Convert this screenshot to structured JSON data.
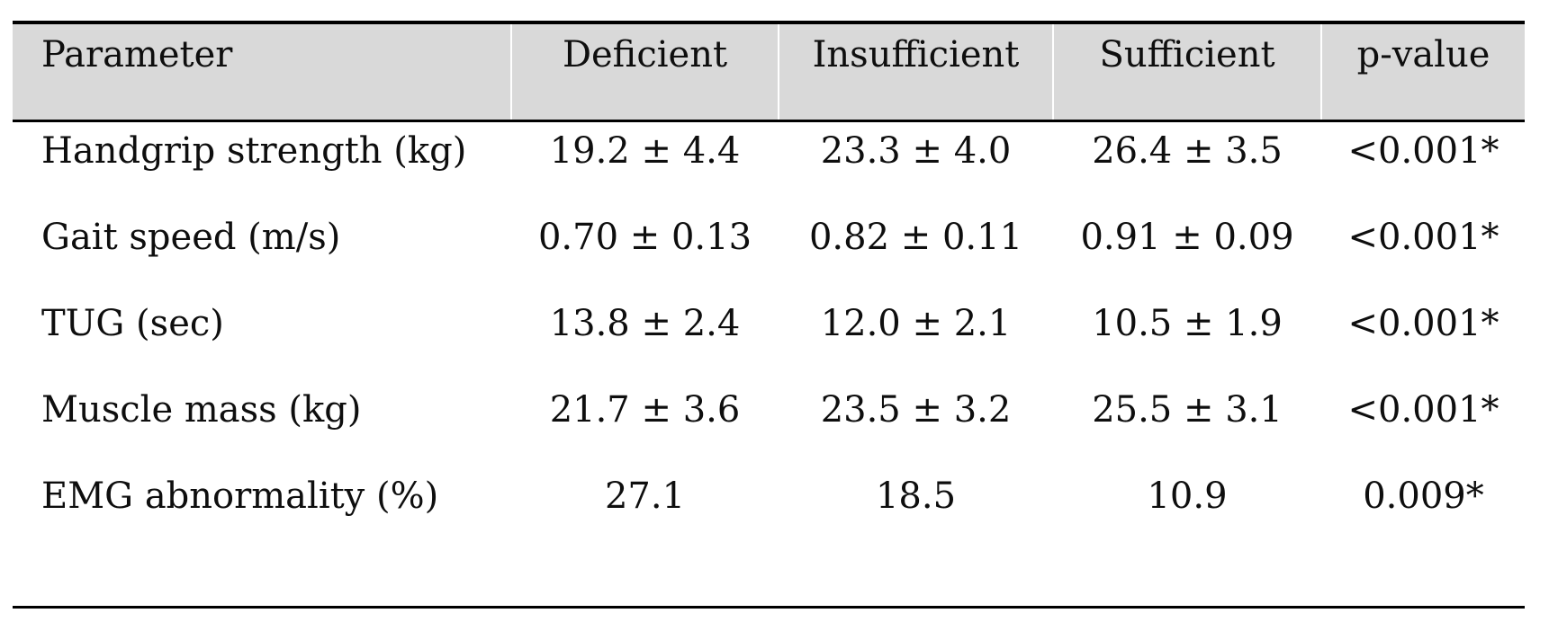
{
  "table": {
    "columns": [
      "Parameter",
      "Deficient",
      "Insufficient",
      "Sufficient",
      "p-value"
    ],
    "rows": [
      {
        "cells": [
          "Handgrip strength (kg)",
          "19.2 ± 4.4",
          "23.3 ± 4.0",
          "26.4 ± 3.5",
          "<0.001*"
        ]
      },
      {
        "cells": [
          "Gait speed (m/s)",
          "0.70 ± 0.13",
          "0.82 ± 0.11",
          "0.91 ± 0.09",
          "<0.001*"
        ]
      },
      {
        "cells": [
          "TUG (sec)",
          "13.8 ± 2.4",
          "12.0 ± 2.1",
          "10.5 ± 1.9",
          "<0.001*"
        ]
      },
      {
        "cells": [
          "Muscle mass (kg)",
          "21.7 ± 3.6",
          "23.5 ± 3.2",
          "25.5 ± 3.1",
          "<0.001*"
        ]
      },
      {
        "cells": [
          "EMG abnormality (%)",
          "27.1",
          "18.5",
          "10.9",
          "0.009*"
        ]
      }
    ],
    "colors": {
      "header_bg": "#d9d9d9",
      "rule": "#000000",
      "text": "#0e0e0e"
    }
  }
}
